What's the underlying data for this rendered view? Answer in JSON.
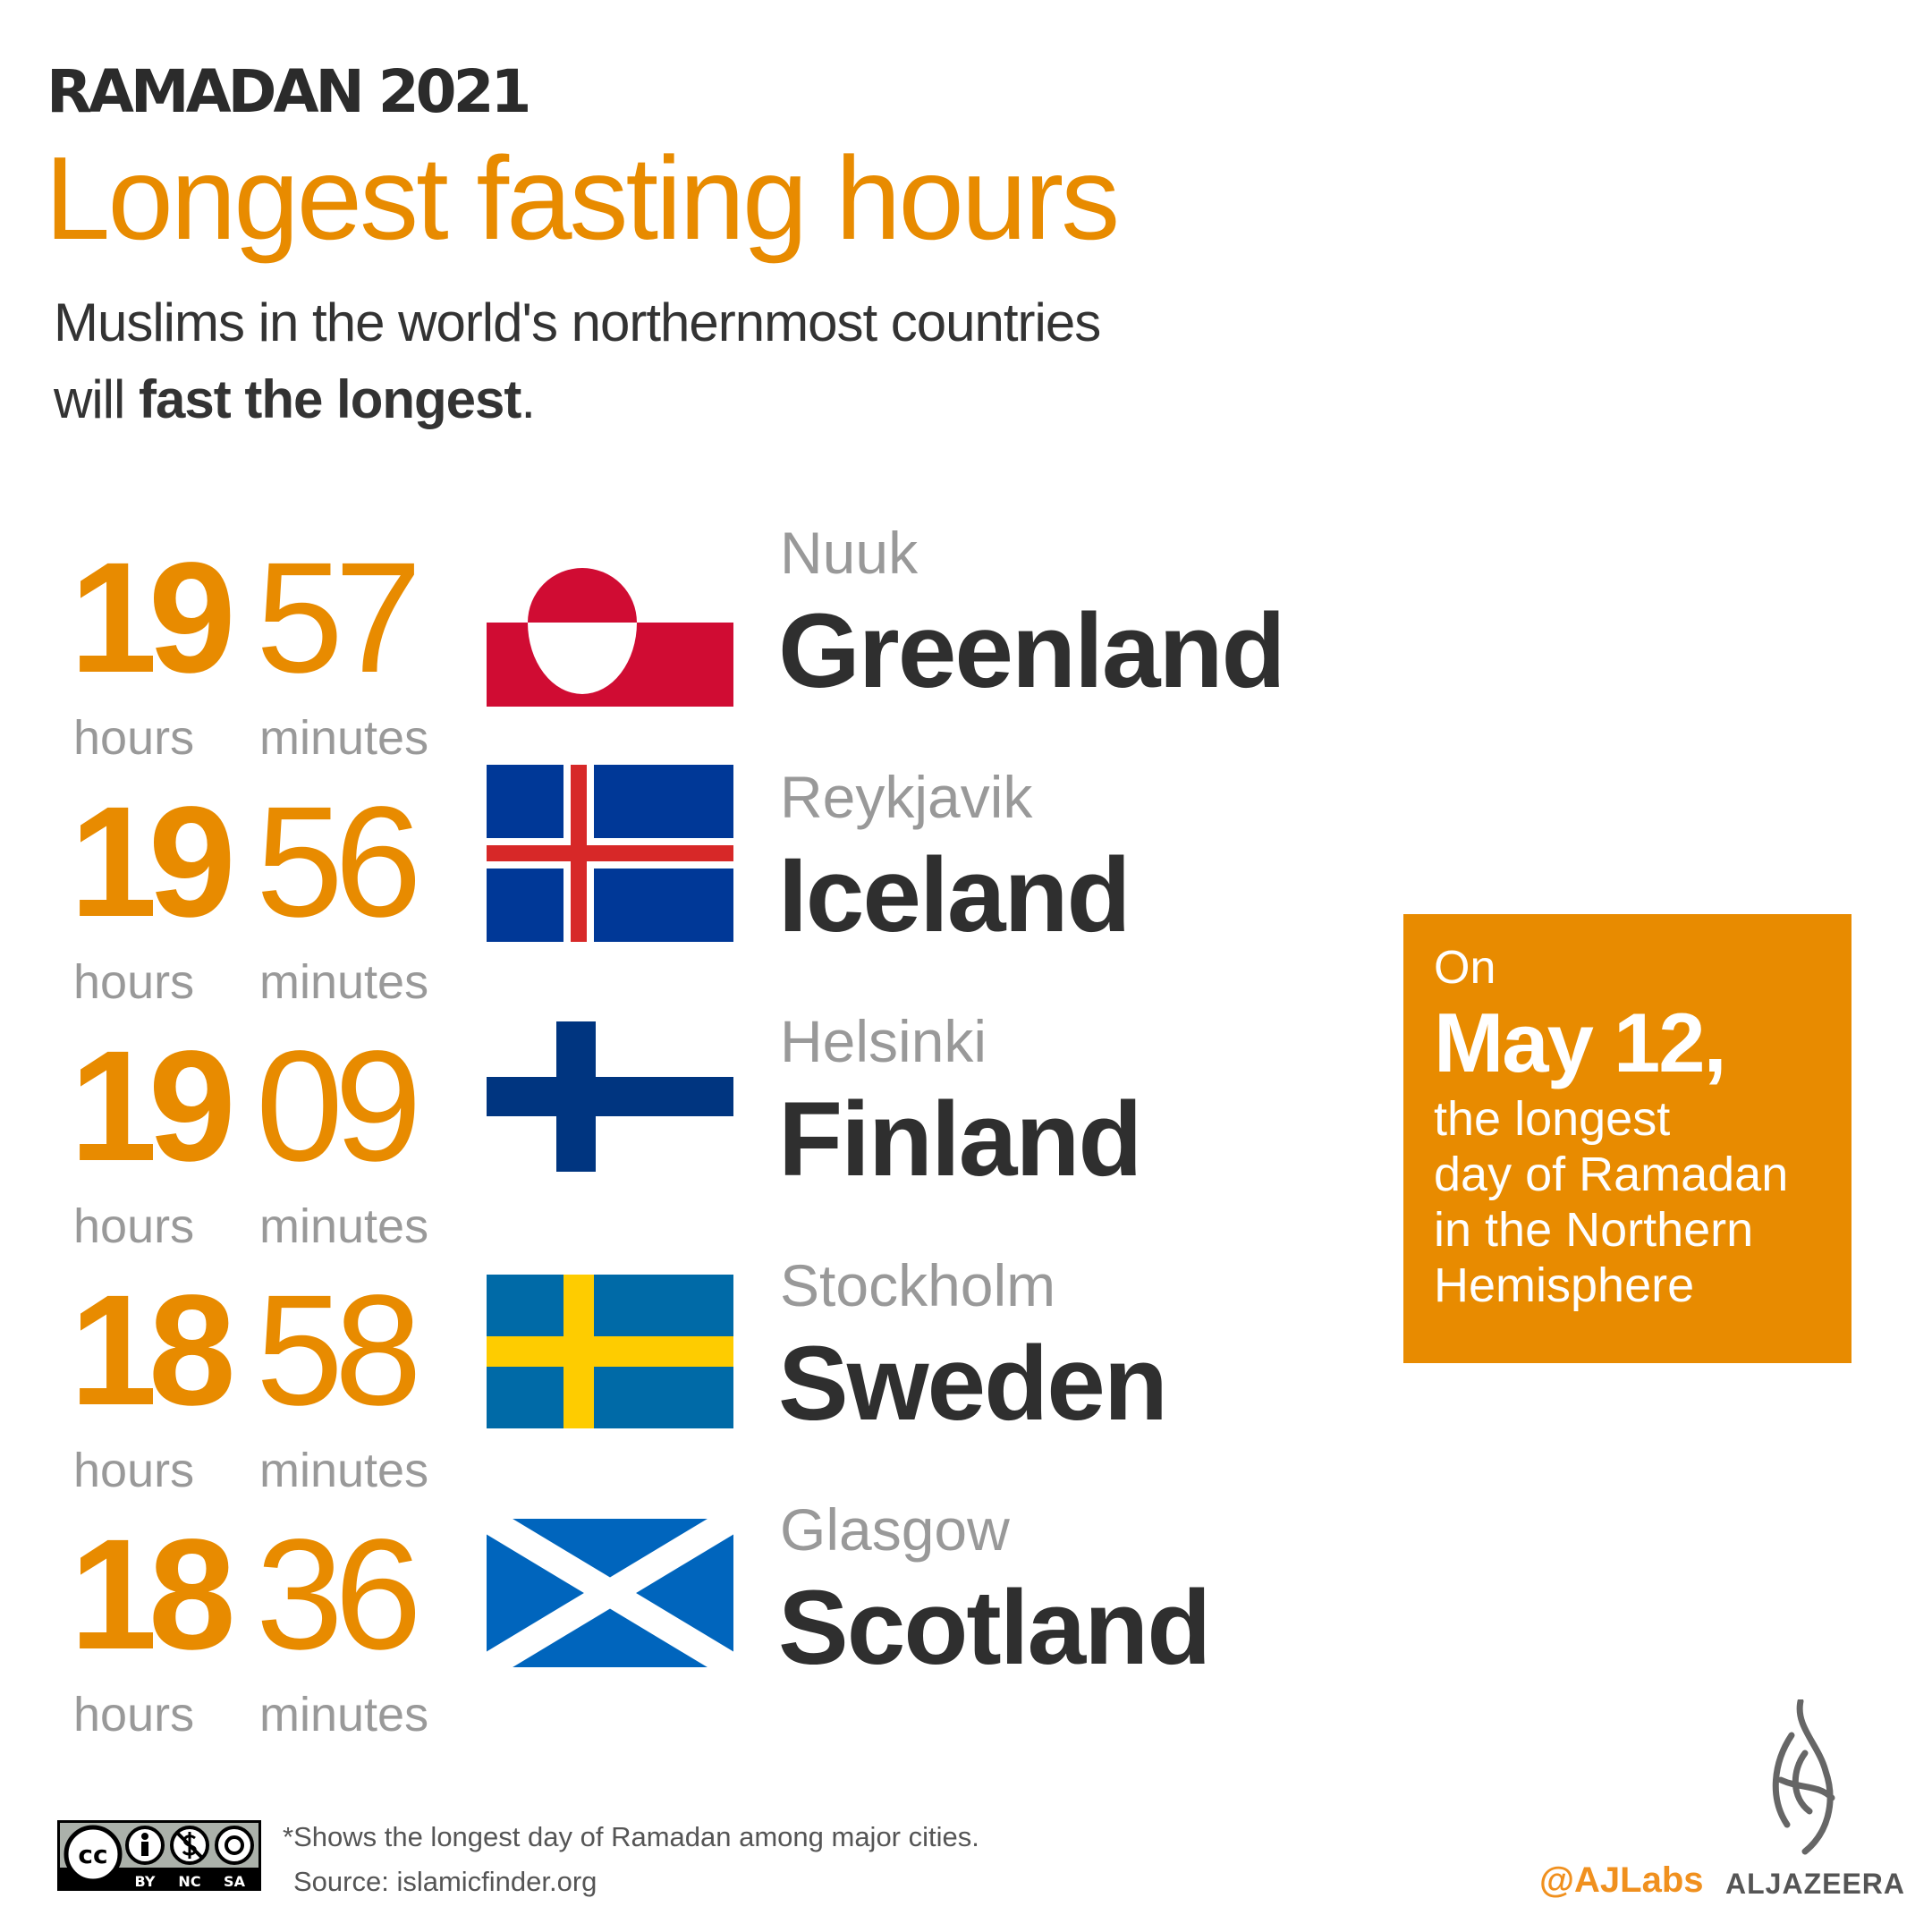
{
  "header": {
    "kicker": "RAMADAN 2021",
    "title": "Longest fasting hours",
    "subtitle_line1": "Muslims in the world's northernmost countries",
    "subtitle_line2_pre": "will ",
    "subtitle_line2_bold": "fast the longest",
    "subtitle_line2_post": "."
  },
  "units": {
    "hours": "hours",
    "minutes": "minutes"
  },
  "rows": [
    {
      "hours": "19",
      "minutes": "57",
      "city": "Nuuk",
      "country": "Greenland",
      "flag": "greenland-flag"
    },
    {
      "hours": "19",
      "minutes": "56",
      "city": "Reykjavik",
      "country": "Iceland",
      "flag": "iceland-flag"
    },
    {
      "hours": "19",
      "minutes": "09",
      "city": "Helsinki",
      "country": "Finland",
      "flag": "finland-flag"
    },
    {
      "hours": "18",
      "minutes": "58",
      "city": "Stockholm",
      "country": "Sweden",
      "flag": "sweden-flag"
    },
    {
      "hours": "18",
      "minutes": "36",
      "city": "Glasgow",
      "country": "Scotland",
      "flag": "scotland-flag"
    }
  ],
  "callout": {
    "line1": "On",
    "line2": "May 12,",
    "line3": "the longest",
    "line4": "day of Ramadan",
    "line5": "in the Northern",
    "line6": "Hemisphere"
  },
  "footer": {
    "note": "*Shows the longest day of Ramadan among major cities.",
    "source": "Source: islamicfinder.org",
    "license": {
      "cc": "cc",
      "by": "BY",
      "nc": "NC",
      "sa": "SA"
    },
    "handle": "@AJLabs",
    "brand": "ALJAZEERA"
  },
  "colors": {
    "accent": "#E88B00",
    "text": "#2f2f2f",
    "muted": "#999999"
  }
}
